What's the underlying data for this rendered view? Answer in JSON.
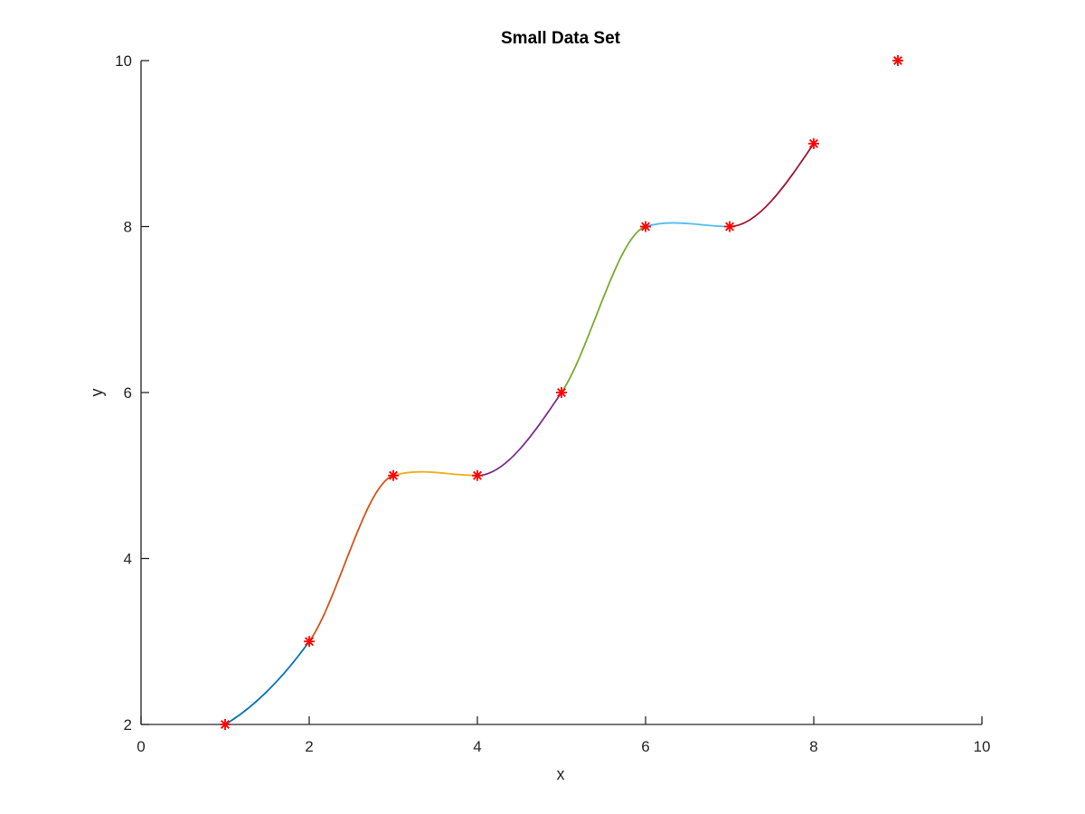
{
  "chart_data": {
    "type": "line",
    "title": "Small Data Set",
    "xlabel": "x",
    "ylabel": "y",
    "xlim": [
      0,
      10
    ],
    "ylim": [
      2,
      10
    ],
    "xticks": [
      "0",
      "2",
      "4",
      "6",
      "8",
      "10"
    ],
    "yticks": [
      "2",
      "4",
      "6",
      "8",
      "10"
    ],
    "grid": false,
    "points": {
      "marker": "asterisk",
      "color": "#ff0000",
      "x": [
        1,
        2,
        3,
        4,
        5,
        6,
        7,
        8,
        9
      ],
      "y": [
        2,
        3,
        5,
        5,
        6,
        8,
        8,
        9,
        10
      ]
    },
    "series": [
      {
        "x": [
          1,
          2
        ],
        "y": [
          2,
          3
        ],
        "dy": [
          0.6,
          1.4
        ],
        "color": "#0072bd"
      },
      {
        "x": [
          2,
          3
        ],
        "y": [
          3,
          5
        ],
        "dy": [
          1.4,
          0.3
        ],
        "color": "#d95319"
      },
      {
        "x": [
          3,
          4
        ],
        "y": [
          5,
          5
        ],
        "dy": [
          0.3,
          0.0
        ],
        "color": "#edb120"
      },
      {
        "x": [
          4,
          5
        ],
        "y": [
          5,
          6
        ],
        "dy": [
          0.0,
          1.5
        ],
        "color": "#7e2f8e"
      },
      {
        "x": [
          5,
          6
        ],
        "y": [
          6,
          8
        ],
        "dy": [
          1.5,
          0.3
        ],
        "color": "#77ac30"
      },
      {
        "x": [
          6,
          7
        ],
        "y": [
          8,
          8
        ],
        "dy": [
          0.3,
          0.0
        ],
        "color": "#4dbeee"
      },
      {
        "x": [
          7,
          8
        ],
        "y": [
          8,
          9
        ],
        "dy": [
          0.0,
          1.5
        ],
        "color": "#a2142f"
      }
    ]
  }
}
